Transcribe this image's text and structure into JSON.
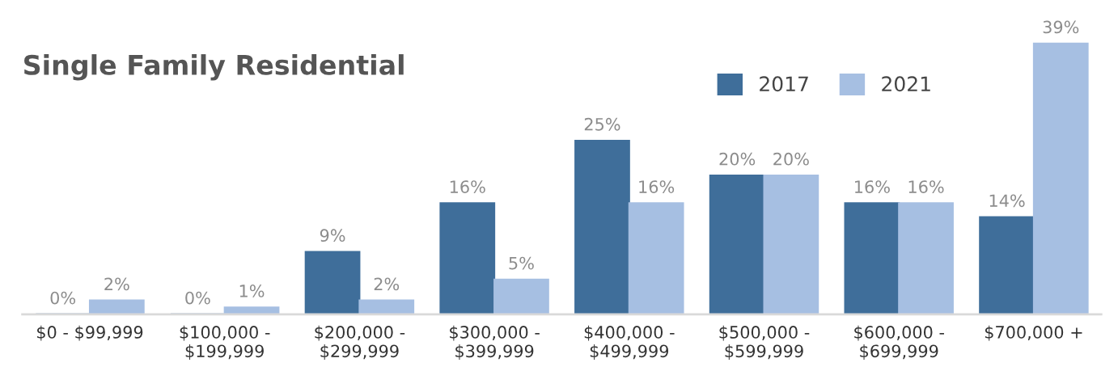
{
  "chart_data": {
    "type": "bar",
    "title": "Single Family Residential",
    "categories": [
      "$0 - $99,999",
      "$100,000 -\n$199,999",
      "$200,000 -\n$299,999",
      "$300,000 -\n$399,999",
      "$400,000 -\n$499,999",
      "$500,000 -\n$599,999",
      "$600,000 -\n$699,999",
      "$700,000 +"
    ],
    "series": [
      {
        "name": "2017",
        "color": "#3f6e9a",
        "values": [
          0,
          0,
          9,
          16,
          25,
          20,
          16,
          14
        ],
        "value_labels": [
          "0%",
          "0%",
          "9%",
          "16%",
          "25%",
          "20%",
          "16%",
          "14%"
        ]
      },
      {
        "name": "2021",
        "color": "#a6bfe2",
        "values": [
          2,
          1,
          2,
          5,
          16,
          20,
          16,
          39
        ],
        "value_labels": [
          "2%",
          "1%",
          "2%",
          "5%",
          "16%",
          "20%",
          "16%",
          "39%"
        ]
      }
    ],
    "legend": "top right",
    "grid": false
  }
}
